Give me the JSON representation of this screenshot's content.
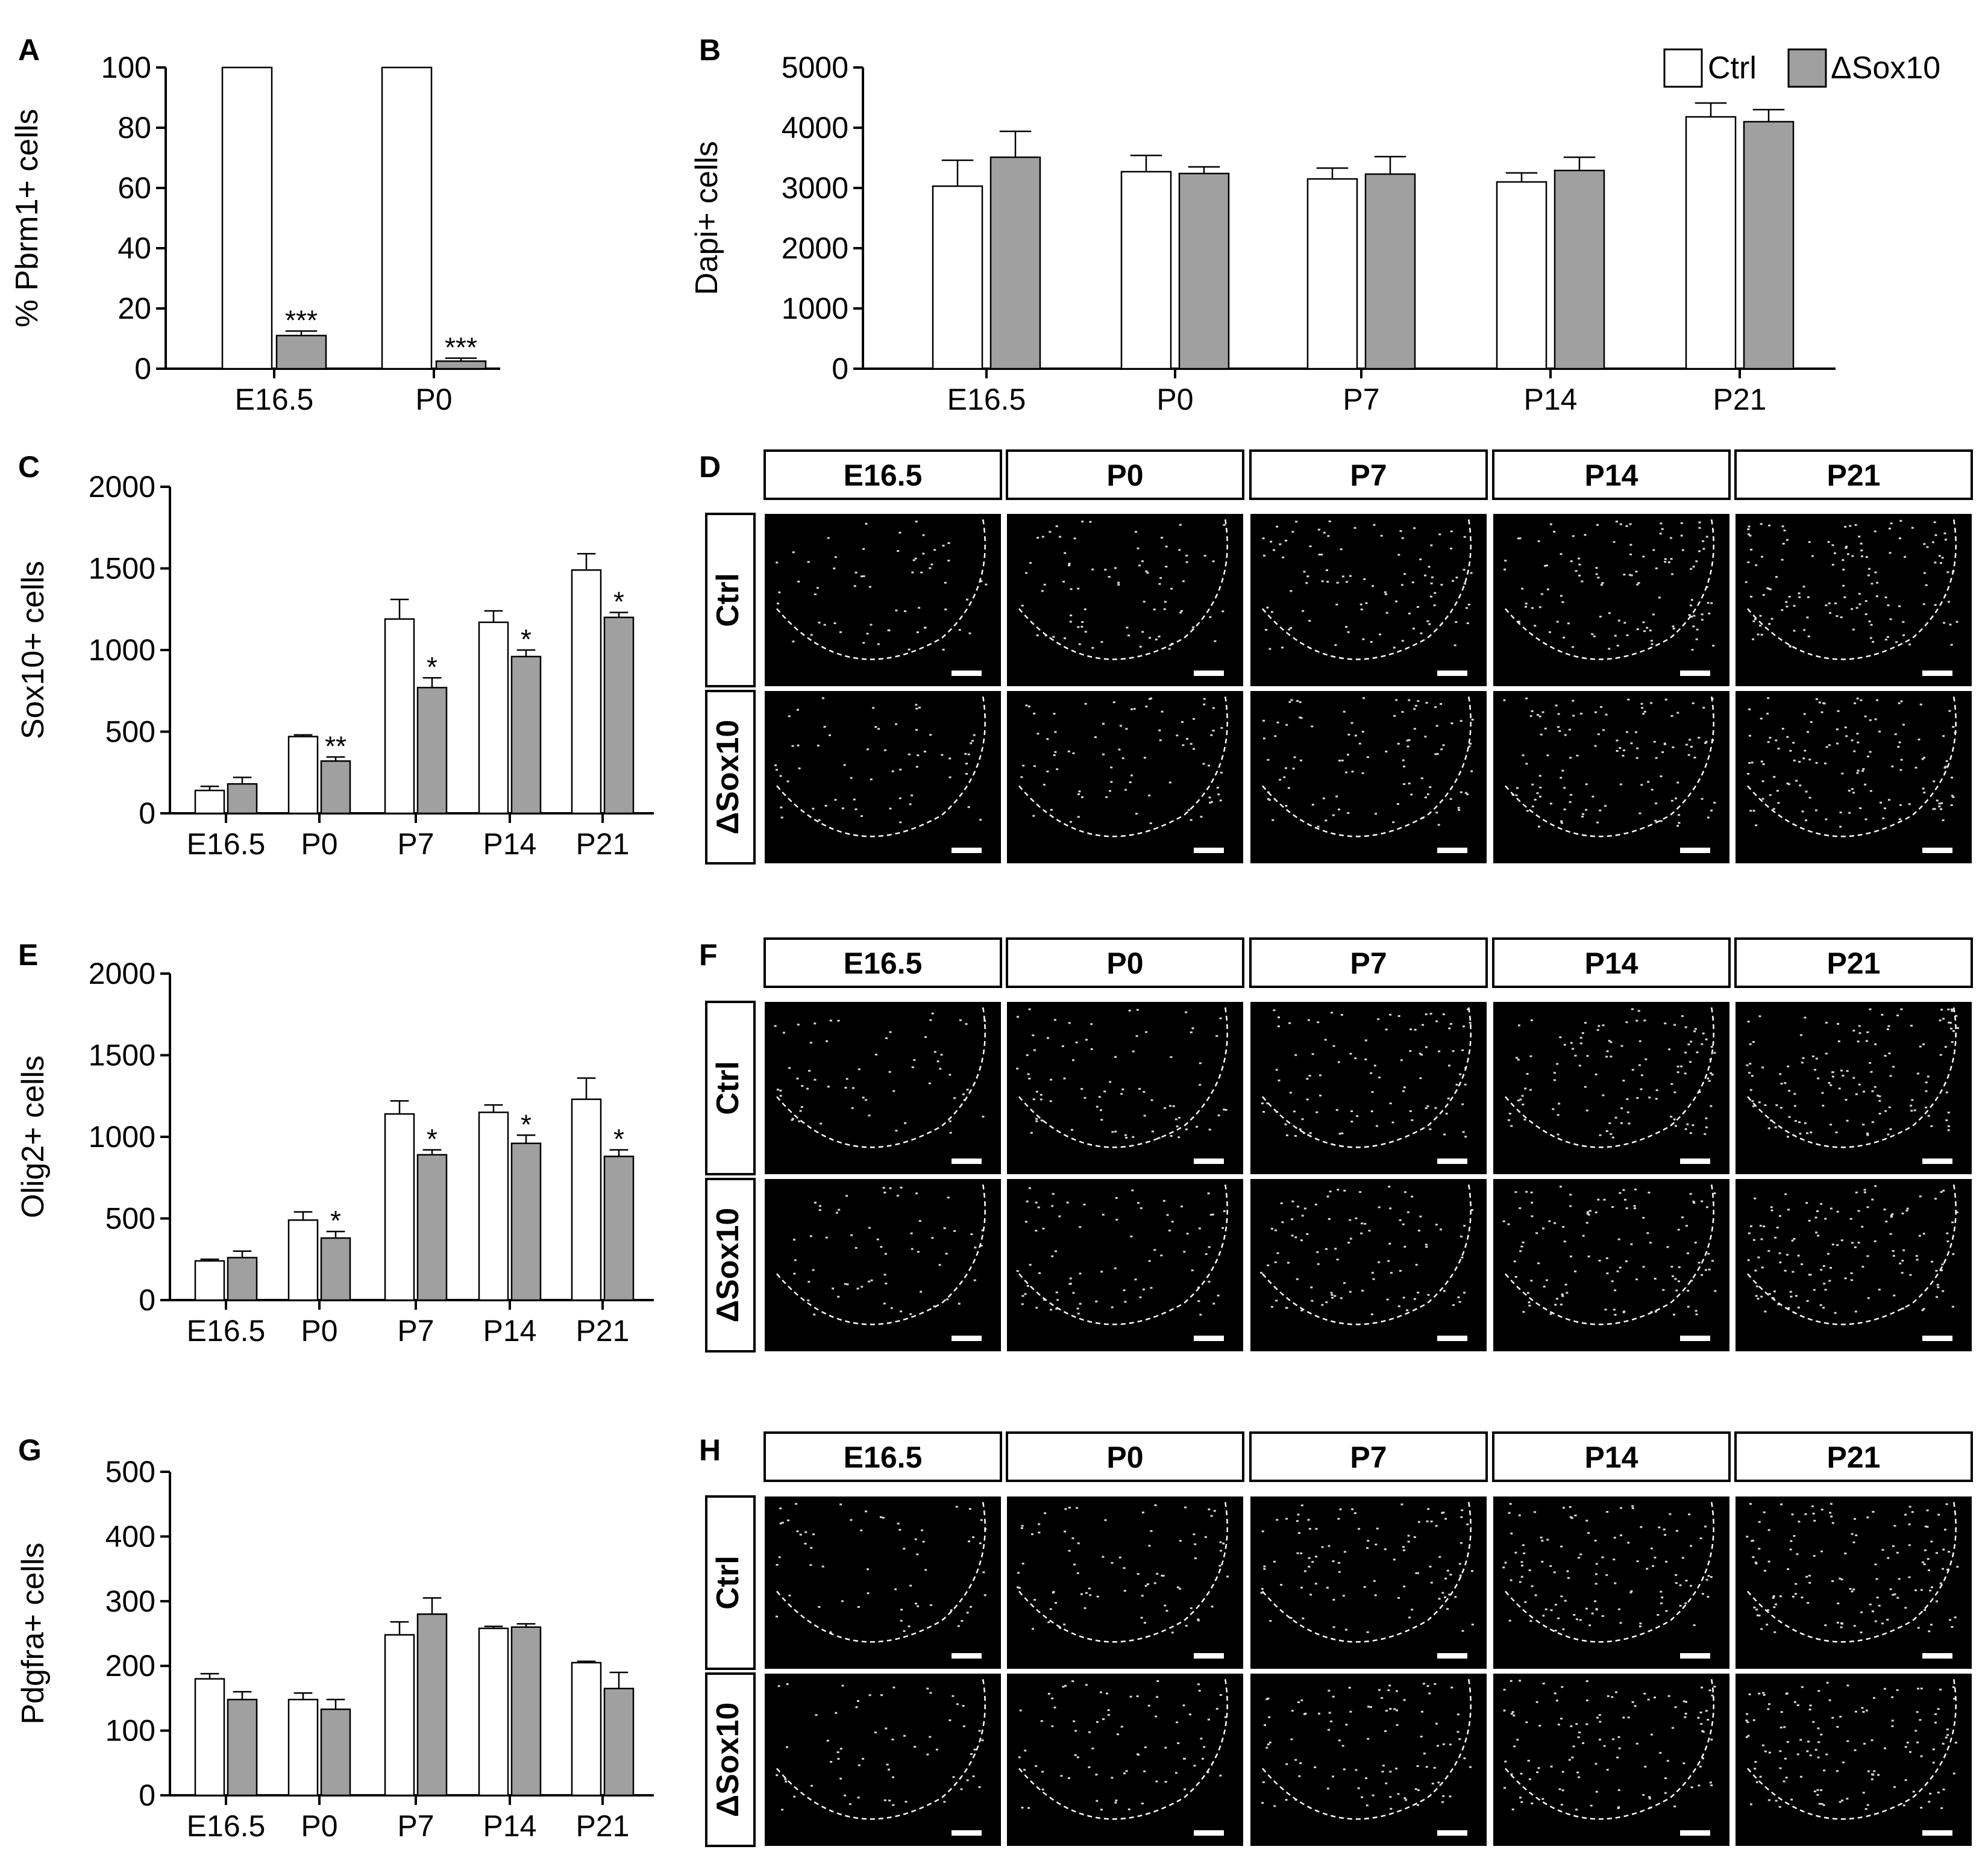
{
  "colors": {
    "ctrl_fill": "#ffffff",
    "mut_fill": "#a0a0a0",
    "stroke": "#000000",
    "micrograph_bg": "#000000",
    "cell_dots": "#ffffff"
  },
  "legend": {
    "ctrl": "Ctrl",
    "mut": "ΔSox10"
  },
  "chart_data": [
    {
      "panel": "A",
      "type": "bar",
      "ylabel": "% Pbrm1+ cells",
      "categories": [
        "E16.5",
        "P0"
      ],
      "ylim": [
        0,
        100
      ],
      "yticks": [
        0,
        20,
        40,
        60,
        80,
        100
      ],
      "series": [
        {
          "name": "Ctrl",
          "values": [
            100,
            100
          ],
          "errors": [
            0,
            0
          ]
        },
        {
          "name": "ΔSox10",
          "values": [
            11,
            2.5
          ],
          "errors": [
            1.5,
            1
          ]
        }
      ],
      "significance": [
        "***",
        "***"
      ]
    },
    {
      "panel": "B",
      "type": "bar",
      "ylabel": "Dapi+ cells",
      "categories": [
        "E16.5",
        "P0",
        "P7",
        "P14",
        "P21"
      ],
      "ylim": [
        0,
        5000
      ],
      "yticks": [
        0,
        1000,
        2000,
        3000,
        4000,
        5000
      ],
      "series": [
        {
          "name": "Ctrl",
          "values": [
            3030,
            3270,
            3150,
            3100,
            4180
          ],
          "errors": [
            430,
            270,
            180,
            150,
            230
          ]
        },
        {
          "name": "ΔSox10",
          "values": [
            3510,
            3240,
            3230,
            3290,
            4100
          ],
          "errors": [
            430,
            110,
            290,
            220,
            200
          ]
        }
      ],
      "significance": [
        "",
        "",
        "",
        "",
        ""
      ]
    },
    {
      "panel": "C",
      "type": "bar",
      "ylabel": "Sox10+ cells",
      "categories": [
        "E16.5",
        "P0",
        "P7",
        "P14",
        "P21"
      ],
      "ylim": [
        0,
        2000
      ],
      "yticks": [
        0,
        500,
        1000,
        1500,
        2000
      ],
      "series": [
        {
          "name": "Ctrl",
          "values": [
            140,
            470,
            1190,
            1170,
            1490
          ],
          "errors": [
            25,
            10,
            120,
            70,
            100
          ]
        },
        {
          "name": "ΔSox10",
          "values": [
            180,
            320,
            770,
            960,
            1200
          ],
          "errors": [
            40,
            25,
            60,
            40,
            30
          ]
        }
      ],
      "significance": [
        "",
        "**",
        "*",
        "*",
        "*"
      ]
    },
    {
      "panel": "E",
      "type": "bar",
      "ylabel": "Olig2+ cells",
      "categories": [
        "E16.5",
        "P0",
        "P7",
        "P14",
        "P21"
      ],
      "ylim": [
        0,
        2000
      ],
      "yticks": [
        0,
        500,
        1000,
        1500,
        2000
      ],
      "series": [
        {
          "name": "Ctrl",
          "values": [
            240,
            490,
            1140,
            1150,
            1230
          ],
          "errors": [
            10,
            50,
            80,
            45,
            130
          ]
        },
        {
          "name": "ΔSox10",
          "values": [
            260,
            380,
            890,
            960,
            880
          ],
          "errors": [
            40,
            40,
            30,
            50,
            40
          ]
        }
      ],
      "significance": [
        "",
        "*",
        "*",
        "*",
        "*"
      ]
    },
    {
      "panel": "G",
      "type": "bar",
      "ylabel": "Pdgfra+ cells",
      "categories": [
        "E16.5",
        "P0",
        "P7",
        "P14",
        "P21"
      ],
      "ylim": [
        0,
        500
      ],
      "yticks": [
        0,
        100,
        200,
        300,
        400,
        500
      ],
      "series": [
        {
          "name": "Ctrl",
          "values": [
            180,
            148,
            248,
            258,
            205
          ],
          "errors": [
            8,
            10,
            20,
            3,
            2
          ]
        },
        {
          "name": "ΔSox10",
          "values": [
            148,
            133,
            280,
            260,
            165
          ],
          "errors": [
            12,
            15,
            25,
            5,
            25
          ]
        }
      ],
      "significance": [
        "",
        "",
        "",
        "",
        ""
      ]
    }
  ],
  "image_panels": [
    {
      "panel": "D",
      "columns": [
        "E16.5",
        "P0",
        "P7",
        "P14",
        "P21"
      ],
      "rows": [
        "Ctrl",
        "ΔSox10"
      ]
    },
    {
      "panel": "F",
      "columns": [
        "E16.5",
        "P0",
        "P7",
        "P14",
        "P21"
      ],
      "rows": [
        "Ctrl",
        "ΔSox10"
      ]
    },
    {
      "panel": "H",
      "columns": [
        "E16.5",
        "P0",
        "P7",
        "P14",
        "P21"
      ],
      "rows": [
        "Ctrl",
        "ΔSox10"
      ]
    }
  ]
}
